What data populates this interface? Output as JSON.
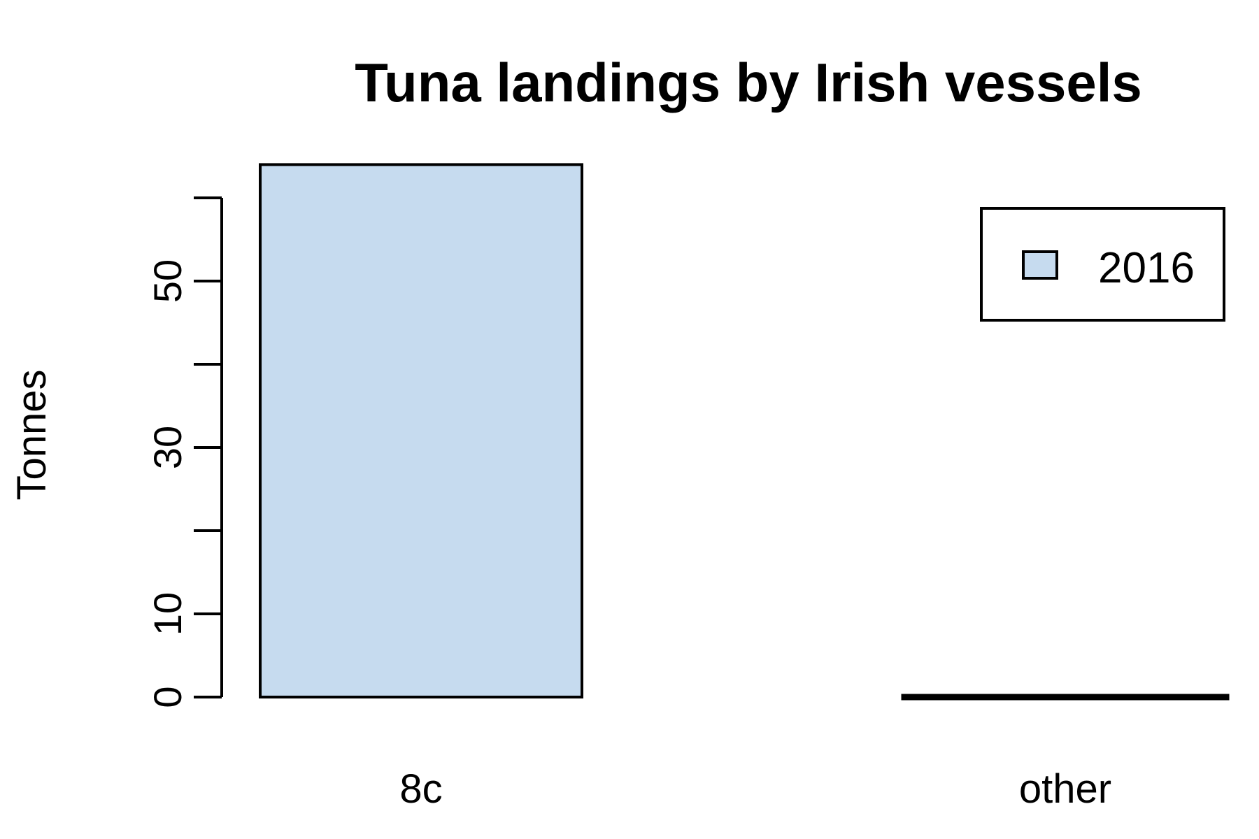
{
  "chart_data": {
    "type": "bar",
    "title": "Tuna landings by Irish vessels",
    "xlabel": "",
    "ylabel": "Tonnes",
    "categories": [
      "8c",
      "other"
    ],
    "series": [
      {
        "name": "2016",
        "values": [
          64,
          0
        ],
        "color": "#c6dbef"
      }
    ],
    "ylim": [
      0,
      60
    ],
    "y_ticks": [
      0,
      10,
      20,
      30,
      40,
      50,
      60
    ],
    "y_tick_labels": [
      "0",
      "10",
      "",
      "30",
      "",
      "50",
      ""
    ],
    "grid": false,
    "legend": {
      "position": "top-right",
      "entries": [
        "2016"
      ]
    }
  }
}
